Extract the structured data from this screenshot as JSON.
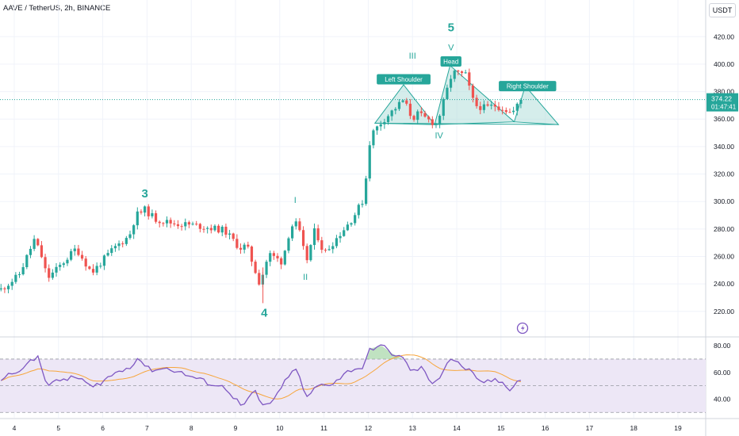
{
  "header": {
    "symbol_line": "AAVE / TetherUS, 2h, BINANCE",
    "currency": "USDT"
  },
  "colors": {
    "up": "#26a69a",
    "down": "#ef5350",
    "wave_label": "#26a69a",
    "pattern_fill": "#b2dfdb",
    "pattern_line": "#26a69a",
    "rsi_line": "#7e57c2",
    "rsi_ma": "#f7a53a",
    "rsi_band": "#ede7f6",
    "price_tag": "#26a69a"
  },
  "chart_data": [
    {
      "type": "candlestick",
      "title": "",
      "ylim": [
        202,
        434
      ],
      "y_ticks": [
        220,
        240,
        260,
        280,
        300,
        320,
        340,
        360,
        380,
        400,
        420
      ],
      "x_ticks": [
        "4",
        "5",
        "6",
        "7",
        "8",
        "9",
        "10",
        "11",
        "12",
        "13",
        "14",
        "15",
        "16",
        "17",
        "18",
        "19"
      ],
      "current_price": {
        "value": 374.22,
        "label": "374.22",
        "countdown": "01:47:41"
      },
      "waypoints": [
        [
          3.7,
          236
        ],
        [
          4.1,
          246
        ],
        [
          4.45,
          272
        ],
        [
          4.6,
          262
        ],
        [
          4.75,
          244
        ],
        [
          5.0,
          252
        ],
        [
          5.4,
          266
        ],
        [
          5.75,
          248
        ],
        [
          6.25,
          266
        ],
        [
          6.6,
          275
        ],
        [
          6.75,
          290
        ],
        [
          6.95,
          294
        ],
        [
          7.2,
          287
        ],
        [
          7.6,
          284
        ],
        [
          8.0,
          283
        ],
        [
          8.4,
          281
        ],
        [
          8.75,
          279
        ],
        [
          9.1,
          266
        ],
        [
          9.25,
          268
        ],
        [
          9.55,
          240
        ],
        [
          9.75,
          262
        ],
        [
          10.05,
          256
        ],
        [
          10.25,
          282
        ],
        [
          10.4,
          284
        ],
        [
          10.6,
          256
        ],
        [
          10.8,
          280
        ],
        [
          11.0,
          262
        ],
        [
          11.3,
          274
        ],
        [
          11.65,
          288
        ],
        [
          11.9,
          302
        ],
        [
          12.05,
          348
        ],
        [
          12.3,
          358
        ],
        [
          12.55,
          366
        ],
        [
          12.8,
          374
        ],
        [
          13.0,
          360
        ],
        [
          13.1,
          364
        ],
        [
          13.55,
          356
        ],
        [
          13.9,
          394
        ],
        [
          14.2,
          392
        ],
        [
          14.4,
          370
        ],
        [
          14.65,
          368
        ],
        [
          14.85,
          370
        ],
        [
          15.05,
          368
        ],
        [
          15.25,
          364
        ],
        [
          15.45,
          374
        ]
      ],
      "annotations": {
        "elliott_waves": [
          {
            "label": "3",
            "x": 6.95,
            "y": 303
          },
          {
            "label": "4",
            "x": 9.65,
            "y": 216
          },
          {
            "label": "5",
            "x": 13.87,
            "y": 424
          },
          {
            "label": "I",
            "x": 10.35,
            "y": 299
          },
          {
            "label": "II",
            "x": 10.58,
            "y": 243
          },
          {
            "label": "III",
            "x": 13.0,
            "y": 404
          },
          {
            "label": "IV",
            "x": 13.6,
            "y": 346
          },
          {
            "label": "V",
            "x": 13.87,
            "y": 410
          }
        ],
        "pattern_tags": [
          {
            "label": "Left Shoulder",
            "x": 12.8,
            "y": 389
          },
          {
            "label": "Head",
            "x": 13.87,
            "y": 402
          },
          {
            "label": "Right Shoulder",
            "x": 15.6,
            "y": 384
          }
        ],
        "pattern_points": [
          [
            12.15,
            357
          ],
          [
            12.8,
            385
          ],
          [
            13.5,
            356
          ],
          [
            13.85,
            399
          ],
          [
            15.3,
            358
          ],
          [
            15.55,
            384
          ],
          [
            16.3,
            356
          ]
        ]
      }
    },
    {
      "type": "line",
      "title": "",
      "ylim": [
        26,
        86
      ],
      "y_ticks": [
        40,
        60,
        80
      ],
      "levels": [
        30,
        50,
        70
      ],
      "waypoints": [
        [
          3.7,
          55
        ],
        [
          4.3,
          66
        ],
        [
          4.55,
          72
        ],
        [
          4.75,
          50
        ],
        [
          5.1,
          55
        ],
        [
          5.5,
          56
        ],
        [
          5.75,
          48
        ],
        [
          6.2,
          58
        ],
        [
          6.6,
          64
        ],
        [
          6.8,
          71
        ],
        [
          7.05,
          62
        ],
        [
          7.5,
          63
        ],
        [
          7.9,
          58
        ],
        [
          8.4,
          52
        ],
        [
          8.8,
          48
        ],
        [
          9.15,
          34
        ],
        [
          9.45,
          46
        ],
        [
          9.6,
          34
        ],
        [
          9.9,
          40
        ],
        [
          10.2,
          58
        ],
        [
          10.4,
          62
        ],
        [
          10.6,
          40
        ],
        [
          10.85,
          50
        ],
        [
          11.2,
          52
        ],
        [
          11.6,
          62
        ],
        [
          11.9,
          64
        ],
        [
          12.05,
          78
        ],
        [
          12.3,
          80
        ],
        [
          12.55,
          74
        ],
        [
          12.8,
          70
        ],
        [
          13.0,
          60
        ],
        [
          13.2,
          64
        ],
        [
          13.4,
          52
        ],
        [
          13.6,
          56
        ],
        [
          13.85,
          71
        ],
        [
          14.05,
          66
        ],
        [
          14.3,
          61
        ],
        [
          14.5,
          52
        ],
        [
          14.75,
          54
        ],
        [
          15.0,
          53
        ],
        [
          15.2,
          48
        ],
        [
          15.4,
          54
        ],
        [
          15.55,
          56
        ]
      ]
    }
  ]
}
